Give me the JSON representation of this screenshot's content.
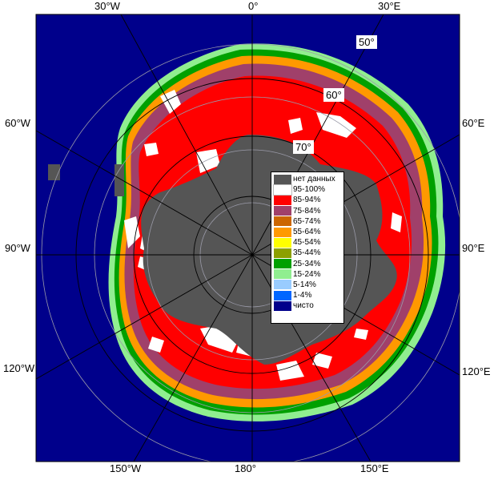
{
  "map": {
    "longitude_labels_top": [
      "30°W",
      "0°",
      "30°E"
    ],
    "longitude_labels_left": [
      "60°W",
      "90°W",
      "120°W"
    ],
    "longitude_labels_right": [
      "60°E",
      "90°E",
      "120°E"
    ],
    "longitude_labels_bottom": [
      "150°W",
      "180°",
      "150°E"
    ],
    "latitude_labels": [
      "50°",
      "60°",
      "70°"
    ],
    "colors": {
      "ocean": "#00008B",
      "land": "#555555",
      "graticule": "#9a9aa8"
    }
  },
  "legend": {
    "items": [
      {
        "label": "нет данных",
        "color": "#555555"
      },
      {
        "label": "95-100%",
        "color": "#ffffff"
      },
      {
        "label": "85-94%",
        "color": "#ff0000"
      },
      {
        "label": "75-84%",
        "color": "#a0406a"
      },
      {
        "label": "65-74%",
        "color": "#cc6600"
      },
      {
        "label": "55-64%",
        "color": "#ff9900"
      },
      {
        "label": "45-54%",
        "color": "#ffff00"
      },
      {
        "label": "35-44%",
        "color": "#8ca000"
      },
      {
        "label": "25-34%",
        "color": "#00a000"
      },
      {
        "label": "15-24%",
        "color": "#90ee90"
      },
      {
        "label": "5-14%",
        "color": "#99ccff"
      },
      {
        "label": "1-4%",
        "color": "#0066ff"
      },
      {
        "label": "чисто",
        "color": "#00008B"
      }
    ]
  }
}
